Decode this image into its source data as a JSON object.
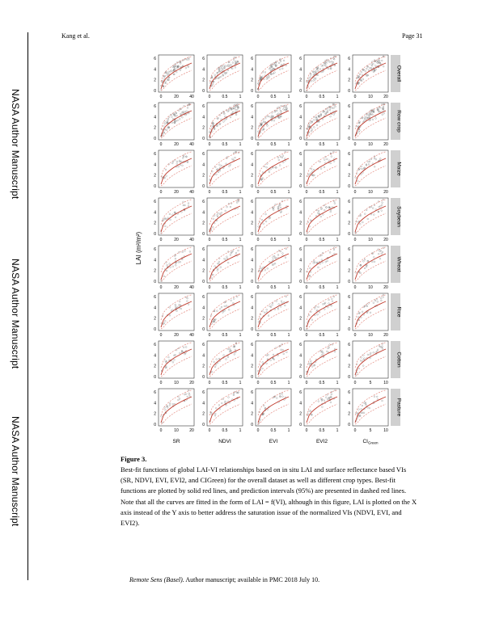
{
  "header": {
    "author": "Kang et al.",
    "page": "Page 31"
  },
  "side_labels": [
    "NASA Author Manuscript",
    "NASA Author Manuscript",
    "NASA Author Manuscript"
  ],
  "figure": {
    "y_axis_label": "LAI (m²/m²)",
    "y_ticks": [
      "0",
      "2",
      "4",
      "6"
    ],
    "x_axis_titles": [
      "SR",
      "NDVI",
      "EVI",
      "EVI2",
      "CIGreen"
    ],
    "x_ticks": {
      "SR_wide": [
        "0",
        "20",
        "40"
      ],
      "SR_narrow": [
        "0",
        "10",
        "20"
      ],
      "NDVI": [
        "0",
        "0.5",
        "1"
      ],
      "EVI": [
        "0",
        "0.5",
        "1"
      ],
      "EVI2": [
        "0",
        "0.5",
        "1"
      ],
      "CIGreen_wide": [
        "0",
        "10",
        "20"
      ],
      "CIGreen_narrow": [
        "0",
        "5",
        "10"
      ]
    },
    "row_labels": [
      "Overall",
      "Row crop",
      "Maize",
      "Soybean",
      "Wheat",
      "Rice",
      "Cotton",
      "Pasture"
    ],
    "colors": {
      "fit": "#c0392b",
      "prediction_interval": "#e07a6e",
      "points": "#555555",
      "strip": "#d0d0d0"
    }
  },
  "caption": {
    "title": "Figure 3.",
    "text": "Best-fit functions of global LAI-VI relationships based on in situ LAI and surface reflectance based VIs (SR, NDVI, EVI, EVI2, and CIGreen) for the overall dataset as well as different crop types. Best-fit functions are plotted by solid red lines, and prediction intervals (95%) are presented in dashed red lines. Note that all the curves are fitted in the form of LAI = f(VI), although in this figure, LAI is plotted on the X axis instead of the Y axis to better address the saturation issue of the normalized VIs (NDVI, EVI, and EVI2)."
  },
  "footer": {
    "journal": "Remote Sens (Basel).",
    "note": " Author manuscript; available in PMC 2018 July 10."
  }
}
